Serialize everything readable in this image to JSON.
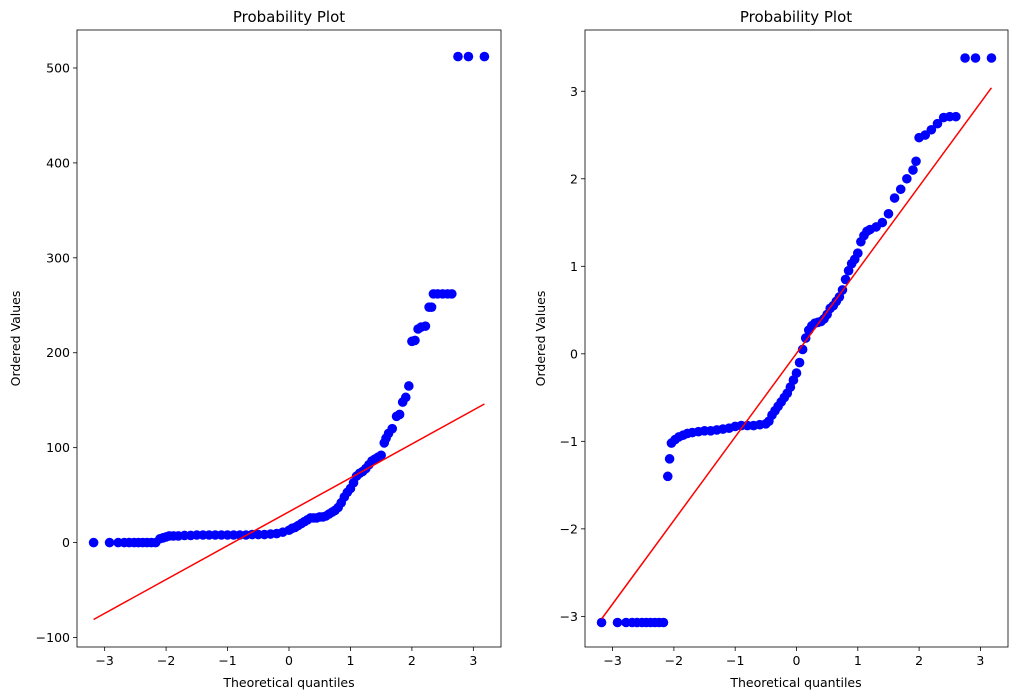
{
  "chart_data": [
    {
      "type": "scatter",
      "title": "Probability Plot",
      "xlabel": "Theoretical quantiles",
      "ylabel": "Ordered Values",
      "xlim": [
        -3.45,
        3.45
      ],
      "ylim": [
        -110,
        540
      ],
      "xticks": [
        -3,
        -2,
        -1,
        0,
        1,
        2,
        3
      ],
      "xtick_labels": [
        "−3",
        "−2",
        "−1",
        "0",
        "1",
        "2",
        "3"
      ],
      "yticks": [
        -100,
        0,
        100,
        200,
        300,
        400,
        500
      ],
      "ytick_labels": [
        "−100",
        "0",
        "100",
        "200",
        "300",
        "400",
        "500"
      ],
      "grid": false,
      "series": [
        {
          "name": "Ordered Values",
          "color": "#0000ff",
          "points": [
            [
              -3.18,
              0
            ],
            [
              -2.92,
              0
            ],
            [
              -2.78,
              0
            ],
            [
              -2.68,
              0
            ],
            [
              -2.6,
              0
            ],
            [
              -2.52,
              0
            ],
            [
              -2.45,
              0
            ],
            [
              -2.38,
              0
            ],
            [
              -2.31,
              0
            ],
            [
              -2.24,
              0
            ],
            [
              -2.17,
              0
            ],
            [
              -2.1,
              4
            ],
            [
              -2.05,
              5
            ],
            [
              -2.0,
              6
            ],
            [
              -1.95,
              7
            ],
            [
              -1.88,
              7
            ],
            [
              -1.8,
              7
            ],
            [
              -1.7,
              7.5
            ],
            [
              -1.6,
              7.5
            ],
            [
              -1.5,
              8
            ],
            [
              -1.4,
              8
            ],
            [
              -1.3,
              8
            ],
            [
              -1.2,
              8
            ],
            [
              -1.1,
              8
            ],
            [
              -1.0,
              8
            ],
            [
              -0.9,
              8
            ],
            [
              -0.8,
              8
            ],
            [
              -0.7,
              8
            ],
            [
              -0.6,
              8.5
            ],
            [
              -0.5,
              8.5
            ],
            [
              -0.4,
              8.5
            ],
            [
              -0.3,
              9
            ],
            [
              -0.2,
              9.5
            ],
            [
              -0.1,
              11
            ],
            [
              0.0,
              13
            ],
            [
              0.05,
              15
            ],
            [
              0.1,
              16
            ],
            [
              0.15,
              18
            ],
            [
              0.2,
              20
            ],
            [
              0.25,
              22
            ],
            [
              0.3,
              24
            ],
            [
              0.35,
              26
            ],
            [
              0.4,
              26
            ],
            [
              0.45,
              26
            ],
            [
              0.5,
              27
            ],
            [
              0.55,
              27
            ],
            [
              0.6,
              28
            ],
            [
              0.65,
              30
            ],
            [
              0.7,
              32
            ],
            [
              0.75,
              34
            ],
            [
              0.8,
              37
            ],
            [
              0.85,
              42
            ],
            [
              0.9,
              48
            ],
            [
              0.95,
              53
            ],
            [
              1.0,
              57
            ],
            [
              1.05,
              63
            ],
            [
              1.1,
              70
            ],
            [
              1.15,
              73
            ],
            [
              1.2,
              75
            ],
            [
              1.25,
              78
            ],
            [
              1.3,
              82
            ],
            [
              1.35,
              86
            ],
            [
              1.4,
              88
            ],
            [
              1.45,
              90
            ],
            [
              1.5,
              92
            ],
            [
              1.55,
              105
            ],
            [
              1.58,
              110
            ],
            [
              1.62,
              115
            ],
            [
              1.68,
              120
            ],
            [
              1.75,
              133
            ],
            [
              1.8,
              135
            ],
            [
              1.85,
              148
            ],
            [
              1.9,
              153
            ],
            [
              1.95,
              165
            ],
            [
              2.0,
              212
            ],
            [
              2.05,
              213
            ],
            [
              2.1,
              225
            ],
            [
              2.15,
              227
            ],
            [
              2.22,
              228
            ],
            [
              2.28,
              248
            ],
            [
              2.32,
              248
            ],
            [
              2.35,
              262
            ],
            [
              2.42,
              262
            ],
            [
              2.5,
              262
            ],
            [
              2.58,
              262
            ],
            [
              2.65,
              262
            ],
            [
              2.75,
              512
            ],
            [
              2.92,
              512
            ],
            [
              3.18,
              512
            ]
          ]
        }
      ],
      "fit_line": {
        "color": "#ff0000",
        "x": [
          -3.18,
          3.18
        ],
        "y": [
          -81,
          146
        ]
      }
    },
    {
      "type": "scatter",
      "title": "Probability Plot",
      "xlabel": "Theoretical quantiles",
      "ylabel": "Ordered Values",
      "xlim": [
        -3.45,
        3.45
      ],
      "ylim": [
        -3.35,
        3.7
      ],
      "xticks": [
        -3,
        -2,
        -1,
        0,
        1,
        2,
        3
      ],
      "xtick_labels": [
        "−3",
        "−2",
        "−1",
        "0",
        "1",
        "2",
        "3"
      ],
      "yticks": [
        -3,
        -2,
        -1,
        0,
        1,
        2,
        3
      ],
      "ytick_labels": [
        "−3",
        "−2",
        "−1",
        "0",
        "1",
        "2",
        "3"
      ],
      "grid": false,
      "series": [
        {
          "name": "Ordered Values",
          "color": "#0000ff",
          "points": [
            [
              -3.18,
              -3.07
            ],
            [
              -2.92,
              -3.07
            ],
            [
              -2.78,
              -3.07
            ],
            [
              -2.68,
              -3.07
            ],
            [
              -2.6,
              -3.07
            ],
            [
              -2.52,
              -3.07
            ],
            [
              -2.45,
              -3.07
            ],
            [
              -2.38,
              -3.07
            ],
            [
              -2.31,
              -3.07
            ],
            [
              -2.24,
              -3.07
            ],
            [
              -2.17,
              -3.07
            ],
            [
              -2.1,
              -1.4
            ],
            [
              -2.07,
              -1.2
            ],
            [
              -2.04,
              -1.02
            ],
            [
              -1.98,
              -0.98
            ],
            [
              -1.92,
              -0.95
            ],
            [
              -1.85,
              -0.93
            ],
            [
              -1.78,
              -0.91
            ],
            [
              -1.7,
              -0.9
            ],
            [
              -1.6,
              -0.89
            ],
            [
              -1.5,
              -0.88
            ],
            [
              -1.4,
              -0.88
            ],
            [
              -1.3,
              -0.87
            ],
            [
              -1.2,
              -0.86
            ],
            [
              -1.1,
              -0.85
            ],
            [
              -1.0,
              -0.83
            ],
            [
              -0.9,
              -0.82
            ],
            [
              -0.8,
              -0.82
            ],
            [
              -0.7,
              -0.82
            ],
            [
              -0.6,
              -0.81
            ],
            [
              -0.5,
              -0.8
            ],
            [
              -0.45,
              -0.77
            ],
            [
              -0.4,
              -0.7
            ],
            [
              -0.35,
              -0.65
            ],
            [
              -0.3,
              -0.6
            ],
            [
              -0.25,
              -0.55
            ],
            [
              -0.2,
              -0.5
            ],
            [
              -0.15,
              -0.45
            ],
            [
              -0.1,
              -0.38
            ],
            [
              -0.05,
              -0.3
            ],
            [
              0.0,
              -0.22
            ],
            [
              0.05,
              -0.1
            ],
            [
              0.1,
              0.05
            ],
            [
              0.15,
              0.18
            ],
            [
              0.2,
              0.27
            ],
            [
              0.25,
              0.32
            ],
            [
              0.3,
              0.35
            ],
            [
              0.35,
              0.36
            ],
            [
              0.4,
              0.37
            ],
            [
              0.45,
              0.4
            ],
            [
              0.5,
              0.45
            ],
            [
              0.55,
              0.52
            ],
            [
              0.6,
              0.55
            ],
            [
              0.65,
              0.6
            ],
            [
              0.7,
              0.65
            ],
            [
              0.75,
              0.73
            ],
            [
              0.8,
              0.85
            ],
            [
              0.85,
              0.95
            ],
            [
              0.9,
              1.03
            ],
            [
              0.95,
              1.08
            ],
            [
              1.0,
              1.15
            ],
            [
              1.05,
              1.28
            ],
            [
              1.1,
              1.35
            ],
            [
              1.15,
              1.4
            ],
            [
              1.2,
              1.42
            ],
            [
              1.3,
              1.45
            ],
            [
              1.4,
              1.5
            ],
            [
              1.5,
              1.6
            ],
            [
              1.6,
              1.78
            ],
            [
              1.7,
              1.88
            ],
            [
              1.8,
              2.0
            ],
            [
              1.9,
              2.1
            ],
            [
              1.95,
              2.2
            ],
            [
              2.0,
              2.47
            ],
            [
              2.1,
              2.5
            ],
            [
              2.2,
              2.56
            ],
            [
              2.3,
              2.63
            ],
            [
              2.4,
              2.7
            ],
            [
              2.5,
              2.71
            ],
            [
              2.6,
              2.71
            ],
            [
              2.75,
              3.38
            ],
            [
              2.92,
              3.38
            ],
            [
              3.18,
              3.38
            ]
          ]
        }
      ],
      "fit_line": {
        "color": "#ff0000",
        "x": [
          -3.18,
          3.18
        ],
        "y": [
          -3.03,
          3.04
        ]
      }
    }
  ]
}
